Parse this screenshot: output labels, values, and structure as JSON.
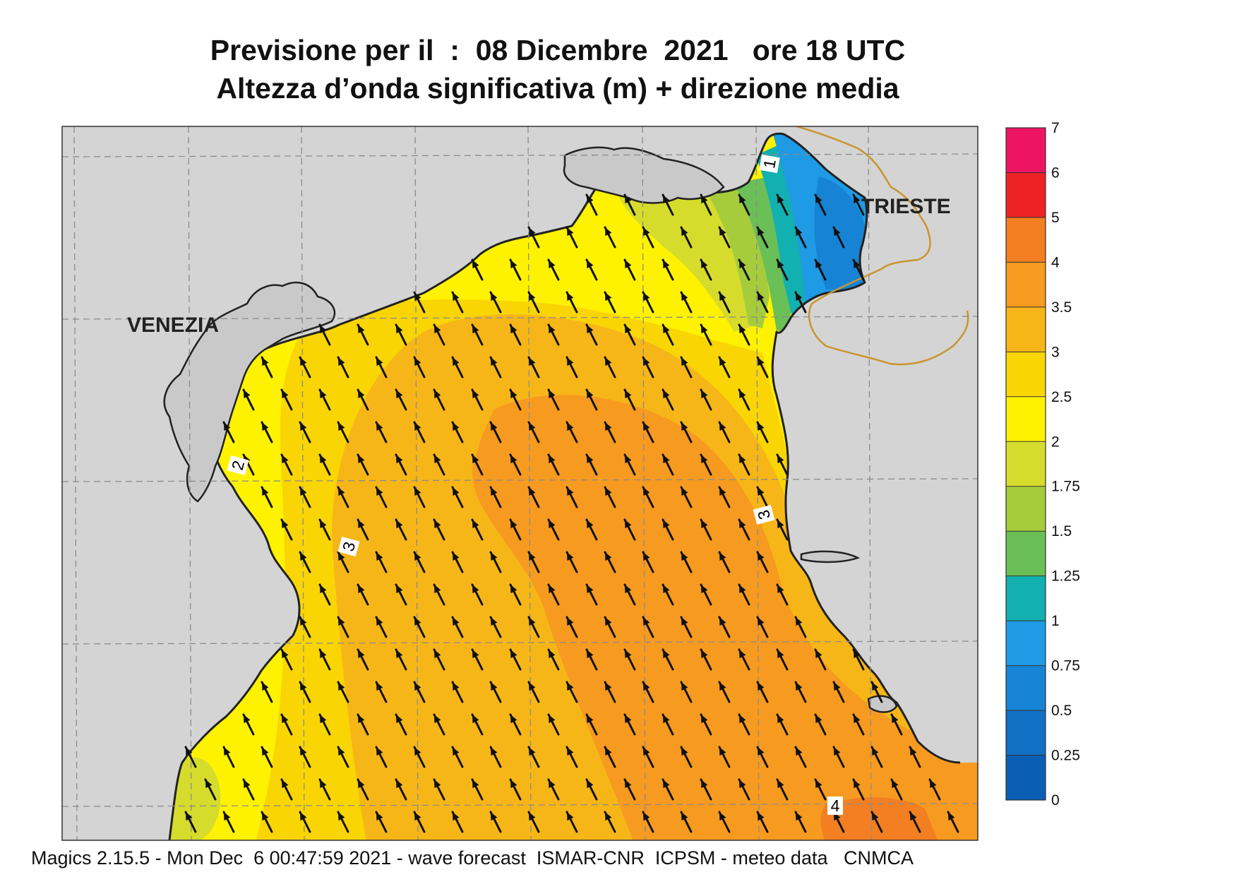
{
  "title": {
    "line1": "Previsione per il  :  08 Dicembre  2021   ore 18 UTC",
    "line2": "Altezza d’onda significativa (m) + direzione media"
  },
  "cities": [
    {
      "name": "VENEZIA"
    },
    {
      "name": "TRIESTE"
    }
  ],
  "contour_labels": [
    "1",
    "2",
    "3",
    "3",
    "4"
  ],
  "arrow_direction": "north-west",
  "colorbar": {
    "ticks": [
      "0",
      "0.25",
      "0.5",
      "0.75",
      "1",
      "1.25",
      "1.5",
      "1.75",
      "2",
      "2.5",
      "3",
      "3.5",
      "4",
      "5",
      "6",
      "7"
    ],
    "colors": [
      "#0a5fb4",
      "#1070c4",
      "#1783d4",
      "#1f9ae4",
      "#12b0b0",
      "#6abf56",
      "#a6cc3c",
      "#d6dc2c",
      "#fff200",
      "#f9d504",
      "#f7b618",
      "#f79a20",
      "#f37f22",
      "#ee2224",
      "#ee1464"
    ]
  },
  "colors": {
    "land": "#d4d4d4",
    "grid": "#999999"
  },
  "footer": "Magics 2.15.5 - Mon Dec  6 00:47:59 2021 - wave forecast  ISMAR-CNR  ICPSM - meteo data   CNMCA"
}
